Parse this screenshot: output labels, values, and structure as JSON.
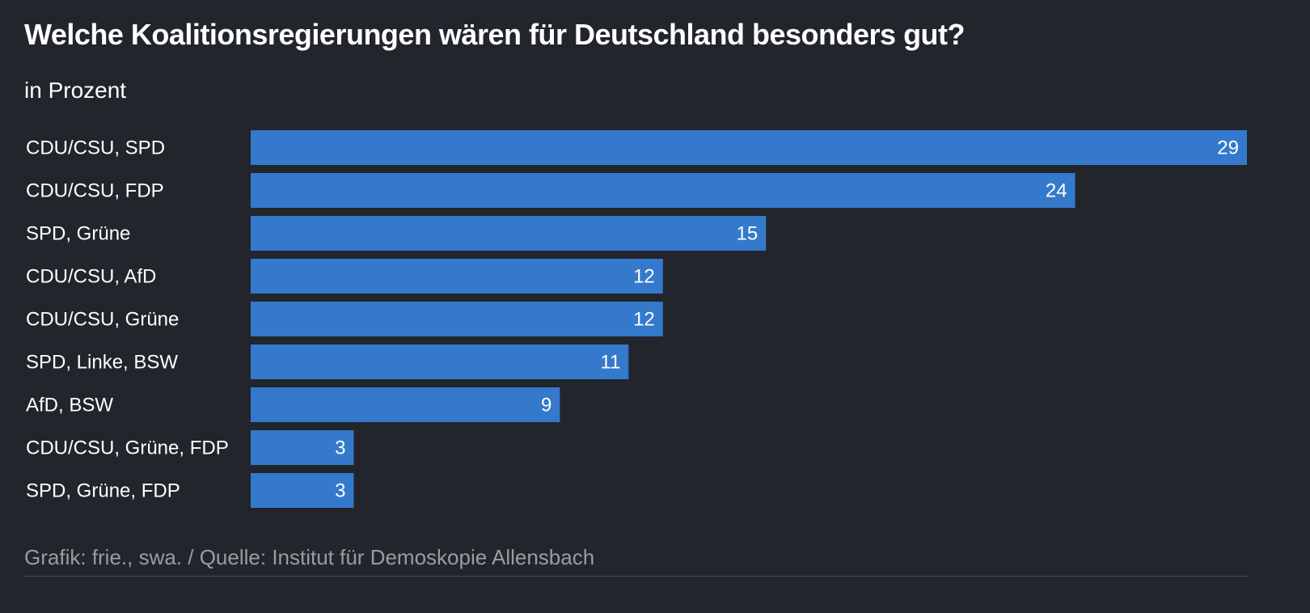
{
  "chart_data": {
    "type": "bar",
    "orientation": "horizontal",
    "title": "Welche Koalitionsregierungen wären für Deutschland besonders gut?",
    "subtitle": "in Prozent",
    "categories": [
      "CDU/CSU, SPD",
      "CDU/CSU, FDP",
      "SPD, Grüne",
      "CDU/CSU, AfD",
      "CDU/CSU, Grüne",
      "SPD, Linke, BSW",
      "AfD, BSW",
      "CDU/CSU, Grüne, FDP",
      "SPD, Grüne, FDP"
    ],
    "values": [
      29,
      24,
      15,
      12,
      12,
      11,
      9,
      3,
      3
    ],
    "xlim": [
      0,
      29
    ],
    "grid": false,
    "bar_color": "#3479cc",
    "source": "Grafik: frie., swa. / Quelle: Institut für Demoskopie Allensbach"
  },
  "colors": {
    "background": "#22252b",
    "text": "#ffffff",
    "source_text": "#9a9ca1",
    "divider": "#4a4d54"
  }
}
